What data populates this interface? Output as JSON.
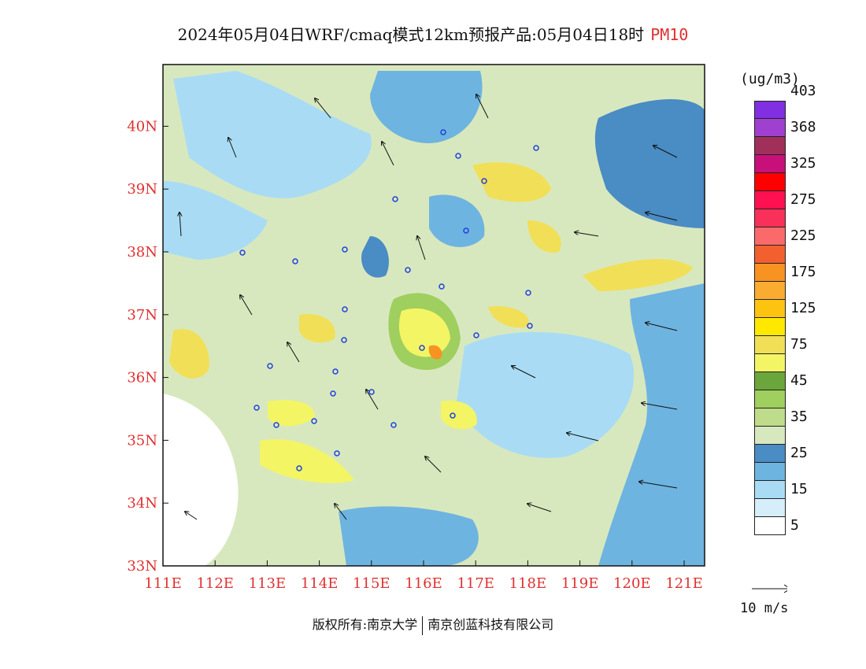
{
  "title": {
    "text": "2024年05月04日WRF/cmaq模式12km预报产品:05月04日18时",
    "pollutant": "PM10"
  },
  "map": {
    "lon_ticks": [
      "111E",
      "112E",
      "113E",
      "114E",
      "115E",
      "116E",
      "117E",
      "118E",
      "119E",
      "120E",
      "121E"
    ],
    "lat_ticks": [
      "33N",
      "34N",
      "35N",
      "36N",
      "37N",
      "38N",
      "39N",
      "40N"
    ],
    "tick_color": "#e03030"
  },
  "legend": {
    "unit": "(ug/m3)",
    "labels": [
      "5",
      "15",
      "25",
      "35",
      "45",
      "75",
      "125",
      "175",
      "225",
      "275",
      "325",
      "368",
      "403"
    ],
    "colors": [
      "#ffffff",
      "#d6eefa",
      "#a9dcf4",
      "#6eb4e0",
      "#4a8cc4",
      "#d8e8be",
      "#bedc8a",
      "#9fcf5e",
      "#6aa63c",
      "#f3f565",
      "#f1df57",
      "#ffe800",
      "#fcc410",
      "#f9ac30",
      "#f89220",
      "#f26030",
      "#fa6a6a",
      "#f8305a",
      "#ff1050",
      "#ff0000",
      "#c8107a",
      "#a0305a",
      "#a040d0",
      "#8030e0"
    ]
  },
  "wind_scale": {
    "label": "10 m/s"
  },
  "footer": {
    "left": "版权所有:南京大学",
    "right": "南京创蓝科技有限公司"
  }
}
